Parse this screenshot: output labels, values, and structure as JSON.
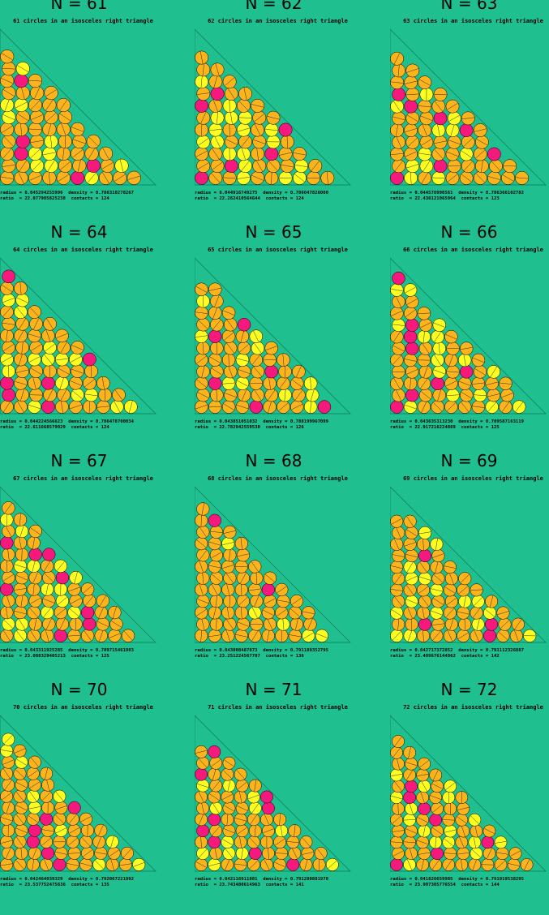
{
  "colors": {
    "background": "#1fbf8f",
    "circle_orange": "#fbb41e",
    "circle_yellow": "#fdfd22",
    "circle_pink": "#f5197d",
    "outline": "#000000"
  },
  "panels": [
    {
      "title": "N = 61",
      "subtitle": "61 circles in an isosceles right triangle",
      "radius": "0.045294255996",
      "density": "0.786310278267",
      "ratio": "22.077905825238",
      "contacts": "124",
      "pink": [
        5,
        16,
        20,
        28,
        55
      ]
    },
    {
      "title": "N = 62",
      "subtitle": "62 circles in an isosceles right triangle",
      "radius": "0.044916749275",
      "density": "0.786047826000",
      "ratio": "22.262410564644",
      "contacts": "124",
      "pink": [
        0,
        12,
        24,
        40,
        47,
        53
      ]
    },
    {
      "title": "N = 63",
      "subtitle": "63 circles in an isosceles right triangle",
      "radius": "0.044570990561",
      "density": "0.786366102782",
      "ratio": "22.436121065964",
      "contacts": "123",
      "pink": [
        0,
        13,
        26,
        39,
        44,
        48,
        52
      ]
    },
    {
      "title": "N = 64",
      "subtitle": "64 circles in an isosceles right triangle",
      "radius": "0.044224566623",
      "density": "0.786478700034",
      "ratio": "22.611668579029",
      "contacts": "124",
      "pink": [
        3,
        10,
        19,
        22,
        40,
        63
      ]
    },
    {
      "title": "N = 65",
      "subtitle": "65 circles in an isosceles right triangle",
      "radius": "0.043851051032",
      "density": "0.788199967099",
      "ratio": "22.782942559530",
      "contacts": "126",
      "pink": [
        4,
        9,
        20,
        33,
        50,
        57
      ]
    },
    {
      "title": "N = 66",
      "subtitle": "66 circles in an isosceles right triangle",
      "radius": "0.043635313230",
      "density": "0.789587163119",
      "ratio": "22.917216224869",
      "contacts": "125",
      "pink": [
        0,
        11,
        22,
        33,
        44,
        50,
        55,
        65
      ]
    },
    {
      "title": "N = 67",
      "subtitle": "67 circles in an isosceles right triangle",
      "radius": "0.043311925285",
      "density": "0.789715461983",
      "ratio": "23.088329405213",
      "contacts": "125",
      "pink": [
        4,
        16,
        25,
        36,
        47,
        56,
        57,
        58
      ]
    },
    {
      "title": "N = 68",
      "subtitle": "68 circles in an isosceles right triangle",
      "radius": "0.043008487873",
      "density": "0.791189352795",
      "ratio": "23.251224567707",
      "contacts": "136",
      "pink": [
        41,
        66
      ]
    },
    {
      "title": "N = 69",
      "subtitle": "69 circles in an isosceles right triangle",
      "radius": "0.042717372852",
      "density": "0.791112326887",
      "ratio": "23.409676144962",
      "contacts": "142",
      "pink": [
        7,
        13,
        18,
        58
      ]
    },
    {
      "title": "N = 70",
      "subtitle": "70 circles in an isosceles right triangle",
      "radius": "0.042464039329",
      "density": "0.792067221992",
      "ratio": "23.537752475636",
      "contacts": "135",
      "pink": [
        4,
        14,
        23,
        32,
        41,
        50
      ]
    },
    {
      "title": "N = 71",
      "subtitle": "71 circles in an isosceles right triangle",
      "radius": "0.042116911881",
      "density": "0.791280881978",
      "ratio": "23.743480614963",
      "contacts": "141",
      "pink": [
        7,
        15,
        22,
        30,
        39,
        50,
        56,
        62,
        70
      ]
    },
    {
      "title": "N = 72",
      "subtitle": "72 circles in an isosceles right triangle",
      "radius": "0.041820659985",
      "density": "0.791919538295",
      "ratio": "23.907305776554",
      "contacts": "144",
      "pink": [
        0,
        14,
        28,
        41,
        47,
        52,
        58
      ]
    }
  ]
}
